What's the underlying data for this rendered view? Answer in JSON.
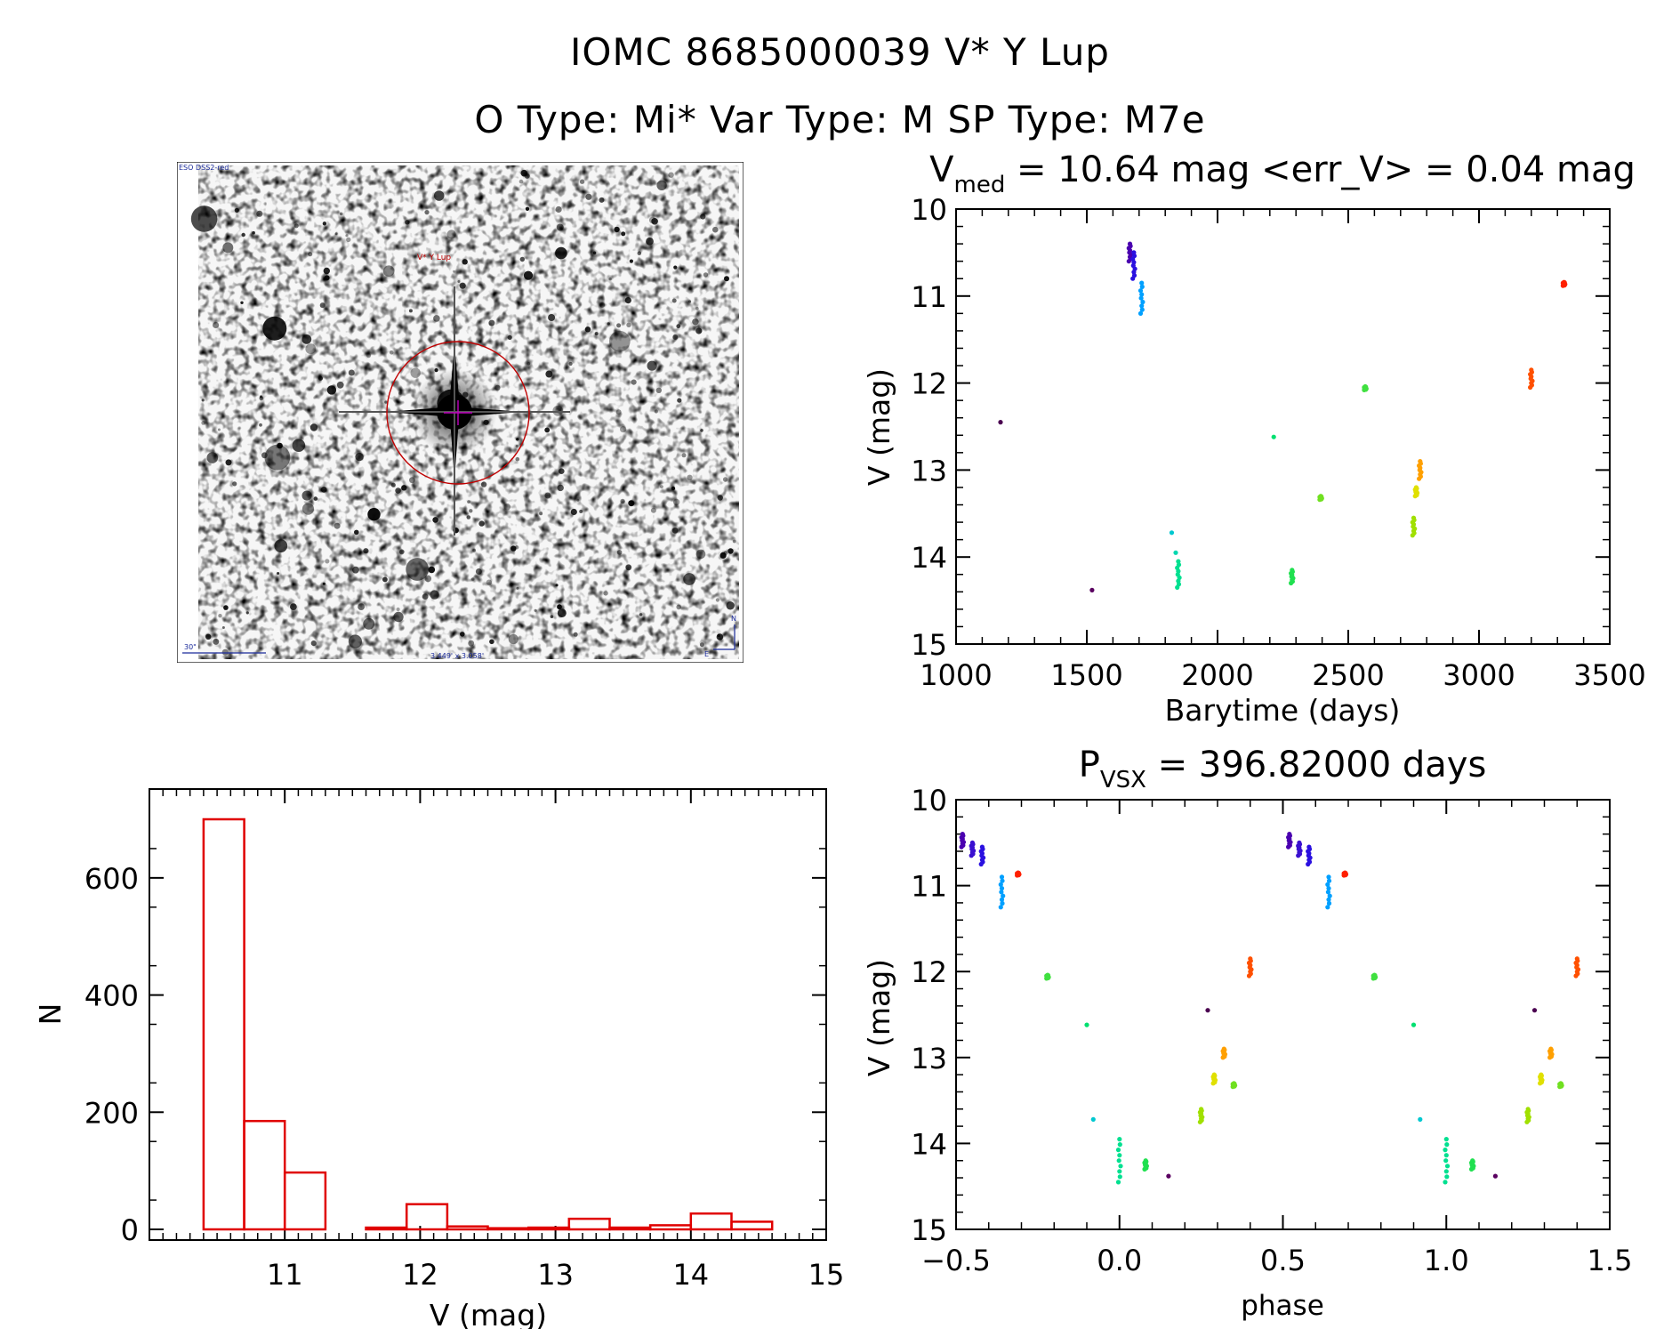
{
  "header": {
    "line1": "IOMC 8685000039    V* Y Lup",
    "line2": "O Type: Mi*  Var Type: M   SP Type: M7e"
  },
  "finder": {
    "label_survey": "ESO DSS2-red",
    "label_target": "V* Y Lup",
    "label_scale": "30\"",
    "label_fov": "3.449' x 3.058'",
    "label_north": "N",
    "label_east": "E"
  },
  "colors": {
    "histogram": "#e00000",
    "marker_circle": "#c00000",
    "marker_cross": "#c000c0",
    "finder_text_blue": "#1a2a9a",
    "finder_text_red": "#c00000"
  },
  "chart_data": [
    {
      "type": "scatter",
      "name": "light_curve",
      "title": "V_med = 10.64 mag <err_V> = 0.04 mag",
      "title_parts": {
        "prefix": "V",
        "sub": "med",
        "rest": " = 10.64 mag <err_V> = 0.04 mag"
      },
      "xlabel": "Barytime (days)",
      "ylabel": "V (mag)",
      "xlim": [
        1000,
        3500
      ],
      "ylim": [
        15,
        10
      ],
      "xticks": [
        "1000",
        "1500",
        "2000",
        "2500",
        "3000",
        "3500"
      ],
      "yticks": [
        "10",
        "11",
        "12",
        "13",
        "14",
        "15"
      ],
      "groups": [
        {
          "x": 1170,
          "y": [
            12.45
          ],
          "color": "#4a0050"
        },
        {
          "x": 1520,
          "y": [
            14.38
          ],
          "color": "#5a0060"
        },
        {
          "x": 1665,
          "y": [
            10.4,
            10.6
          ],
          "color": "#4a00b0"
        },
        {
          "x": 1680,
          "y": [
            10.5,
            10.8
          ],
          "color": "#2a10e0"
        },
        {
          "x": 1710,
          "y": [
            10.85,
            11.2
          ],
          "color": "#00a0ff"
        },
        {
          "x": 1825,
          "y": [
            13.72
          ],
          "color": "#00c8d0"
        },
        {
          "x": 1840,
          "y": [
            13.95
          ],
          "color": "#00d8b0"
        },
        {
          "x": 1850,
          "y": [
            14.05,
            14.35
          ],
          "color": "#00e090"
        },
        {
          "x": 2215,
          "y": [
            12.62
          ],
          "color": "#00e070"
        },
        {
          "x": 2285,
          "y": [
            14.15,
            14.3
          ],
          "color": "#20e050"
        },
        {
          "x": 2395,
          "y": [
            13.3,
            13.34
          ],
          "color": "#70e020"
        },
        {
          "x": 2565,
          "y": [
            12.04,
            12.08
          ],
          "color": "#40e040"
        },
        {
          "x": 2750,
          "y": [
            13.55,
            13.75
          ],
          "color": "#a0e000"
        },
        {
          "x": 2760,
          "y": [
            13.2,
            13.3
          ],
          "color": "#e0e000"
        },
        {
          "x": 2775,
          "y": [
            12.9,
            13.1
          ],
          "color": "#ffa000"
        },
        {
          "x": 3200,
          "y": [
            11.85,
            12.05
          ],
          "color": "#ff5000"
        },
        {
          "x": 3325,
          "y": [
            10.84,
            10.88
          ],
          "color": "#ff2000"
        }
      ]
    },
    {
      "type": "scatter",
      "name": "phased_curve",
      "title": "P_vsx = 396.82000 days",
      "title_parts": {
        "prefix": "P",
        "sub": "VSX",
        "rest": " = 396.82000 days"
      },
      "xlabel": "phase",
      "ylabel": "V (mag)",
      "xlim": [
        -0.5,
        1.5
      ],
      "ylim": [
        15,
        10
      ],
      "xticks": [
        "−0.5",
        "0.0",
        "0.5",
        "1.0",
        "1.5"
      ],
      "yticks": [
        "10",
        "11",
        "12",
        "13",
        "14",
        "15"
      ],
      "groups": [
        {
          "x": -0.48,
          "y": [
            10.4,
            10.55
          ],
          "color": "#4a00b0"
        },
        {
          "x": -0.45,
          "y": [
            10.5,
            10.65
          ],
          "color": "#3a10d0"
        },
        {
          "x": -0.42,
          "y": [
            10.55,
            10.75
          ],
          "color": "#2a10e0"
        },
        {
          "x": -0.36,
          "y": [
            10.9,
            11.25
          ],
          "color": "#00a0ff"
        },
        {
          "x": -0.31,
          "y": [
            10.85,
            10.88
          ],
          "color": "#ff2000"
        },
        {
          "x": -0.22,
          "y": [
            12.04,
            12.08
          ],
          "color": "#40e040"
        },
        {
          "x": -0.1,
          "y": [
            12.62
          ],
          "color": "#00e070"
        },
        {
          "x": -0.08,
          "y": [
            13.72
          ],
          "color": "#00c8d0"
        },
        {
          "x": 0.0,
          "y": [
            13.95,
            14.45
          ],
          "color": "#00e090"
        },
        {
          "x": 0.08,
          "y": [
            14.2,
            14.3
          ],
          "color": "#20e050"
        },
        {
          "x": 0.15,
          "y": [
            14.38
          ],
          "color": "#5a0060"
        },
        {
          "x": 0.25,
          "y": [
            13.6,
            13.75
          ],
          "color": "#a0e000"
        },
        {
          "x": 0.27,
          "y": [
            12.45
          ],
          "color": "#4a0050"
        },
        {
          "x": 0.29,
          "y": [
            13.2,
            13.3
          ],
          "color": "#e0e000"
        },
        {
          "x": 0.32,
          "y": [
            12.9,
            13.0
          ],
          "color": "#ffa000"
        },
        {
          "x": 0.35,
          "y": [
            13.3,
            13.34
          ],
          "color": "#70e020"
        },
        {
          "x": 0.4,
          "y": [
            11.85,
            12.05
          ],
          "color": "#ff5000"
        },
        {
          "x": 0.52,
          "y": [
            10.4,
            10.55
          ],
          "color": "#4a00b0"
        },
        {
          "x": 0.55,
          "y": [
            10.5,
            10.65
          ],
          "color": "#3a10d0"
        },
        {
          "x": 0.58,
          "y": [
            10.55,
            10.75
          ],
          "color": "#2a10e0"
        },
        {
          "x": 0.64,
          "y": [
            10.9,
            11.25
          ],
          "color": "#00a0ff"
        },
        {
          "x": 0.69,
          "y": [
            10.85,
            10.88
          ],
          "color": "#ff2000"
        },
        {
          "x": 0.78,
          "y": [
            12.04,
            12.08
          ],
          "color": "#40e040"
        },
        {
          "x": 0.9,
          "y": [
            12.62
          ],
          "color": "#00e070"
        },
        {
          "x": 0.92,
          "y": [
            13.72
          ],
          "color": "#00c8d0"
        },
        {
          "x": 1.0,
          "y": [
            13.95,
            14.45
          ],
          "color": "#00e090"
        },
        {
          "x": 1.08,
          "y": [
            14.2,
            14.3
          ],
          "color": "#20e050"
        },
        {
          "x": 1.15,
          "y": [
            14.38
          ],
          "color": "#5a0060"
        },
        {
          "x": 1.25,
          "y": [
            13.6,
            13.75
          ],
          "color": "#a0e000"
        },
        {
          "x": 1.27,
          "y": [
            12.45
          ],
          "color": "#4a0050"
        },
        {
          "x": 1.29,
          "y": [
            13.2,
            13.3
          ],
          "color": "#e0e000"
        },
        {
          "x": 1.32,
          "y": [
            12.9,
            13.0
          ],
          "color": "#ffa000"
        },
        {
          "x": 1.35,
          "y": [
            13.3,
            13.34
          ],
          "color": "#70e020"
        },
        {
          "x": 1.4,
          "y": [
            11.85,
            12.05
          ],
          "color": "#ff5000"
        }
      ]
    },
    {
      "type": "bar",
      "name": "histogram",
      "xlabel": "V (mag)",
      "ylabel": "N",
      "xlim": [
        10.0,
        15.0
      ],
      "ylim": [
        0,
        700
      ],
      "xticks": [
        "11",
        "12",
        "13",
        "14",
        "15"
      ],
      "yticks": [
        "0",
        "200",
        "400",
        "600"
      ],
      "bin_width": 0.3,
      "bin_left_edges": [
        10.4,
        10.7,
        11.0,
        11.3,
        11.6,
        11.9,
        12.2,
        12.5,
        12.8,
        13.1,
        13.4,
        13.7,
        14.0,
        14.3
      ],
      "values": [
        700,
        185,
        97,
        0,
        3,
        43,
        5,
        2,
        3,
        18,
        3,
        7,
        27,
        13
      ]
    }
  ]
}
